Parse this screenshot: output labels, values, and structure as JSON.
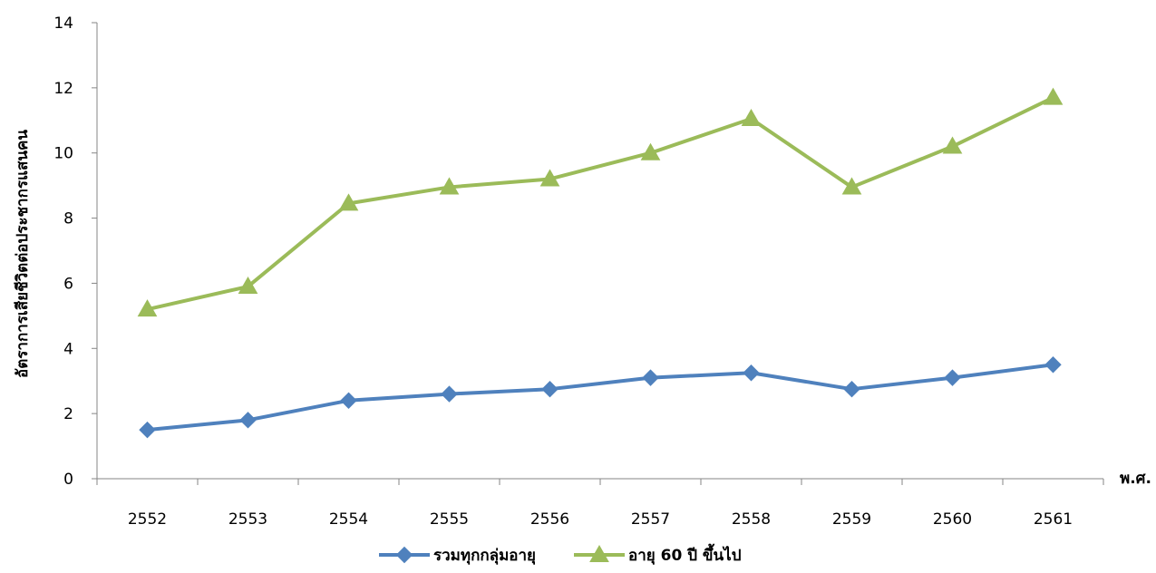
{
  "chart_data": {
    "type": "line",
    "xlabel": "พ.ศ.",
    "ylabel": "อัตราการเสียชีวิตต่อประชากรแสนคน",
    "categories": [
      "2552",
      "2553",
      "2554",
      "2555",
      "2556",
      "2557",
      "2558",
      "2559",
      "2560",
      "2561"
    ],
    "ylim": [
      0,
      14
    ],
    "yticks": [
      0,
      2,
      4,
      6,
      8,
      10,
      12,
      14
    ],
    "grid": false,
    "legend_position": "bottom",
    "series": [
      {
        "name": "รวมทุกกลุ่มอายุ",
        "marker": "diamond",
        "color": "#4F81BD",
        "values": [
          1.5,
          1.8,
          2.4,
          2.6,
          2.75,
          3.1,
          3.25,
          2.75,
          3.1,
          3.5
        ]
      },
      {
        "name": "อายุ 60 ปี ขึ้นไป",
        "marker": "triangle",
        "color": "#9BBB59",
        "values": [
          5.2,
          5.9,
          8.45,
          8.95,
          9.2,
          10.0,
          11.05,
          8.95,
          10.2,
          11.7
        ]
      }
    ]
  }
}
